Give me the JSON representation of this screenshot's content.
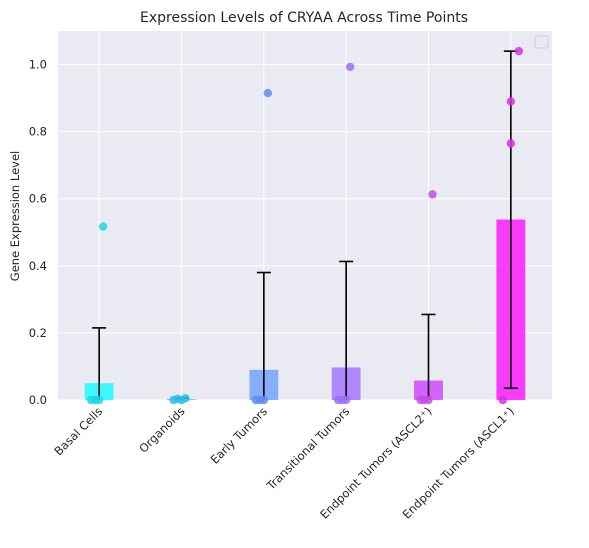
{
  "chart_data": {
    "type": "bar",
    "title": "Expression Levels of CRYAA Across Time Points",
    "xlabel": "",
    "ylabel": "Gene Expression Level",
    "ylim": [
      0,
      1.1
    ],
    "yticks": [
      "0.0",
      "0.2",
      "0.4",
      "0.6",
      "0.8",
      "1.0"
    ],
    "grid": true,
    "legend": "top-right (empty)",
    "categories": [
      "Basal Cells",
      "Organoids",
      "Early Tumors",
      "Transitional Tumors",
      "Endpoint Tumors (ASCL2⁺)",
      "Endpoint Tumors (ASCL1⁺)"
    ],
    "values": [
      0.05,
      0.003,
      0.09,
      0.097,
      0.058,
      0.538
    ],
    "error_bars": [
      [
        0.0,
        0.215
      ],
      [
        0.0,
        0.006
      ],
      [
        0.0,
        0.38
      ],
      [
        0.0,
        0.413
      ],
      [
        0.0,
        0.255
      ],
      [
        0.035,
        1.04
      ]
    ],
    "points": [
      [
        0.0,
        0.0,
        0.0,
        0.517
      ],
      [
        0.0,
        0.003,
        0.0,
        0.005
      ],
      [
        0.0,
        0.0,
        0.0,
        0.915
      ],
      [
        0.0,
        0.0,
        0.0,
        0.993
      ],
      [
        0.0,
        0.0,
        0.0,
        0.613
      ],
      [
        0.0,
        1.04,
        0.89,
        0.765
      ]
    ],
    "colors": [
      "#00ffff",
      "#33ccff",
      "#6699ff",
      "#9966ff",
      "#cc33ff",
      "#ff00ff"
    ],
    "point_colors": [
      "#1ad6e6",
      "#2bbde8",
      "#5c8cf0",
      "#9b6ef0",
      "#c44be8",
      "#de2ee8"
    ],
    "background": "#eaeaf2",
    "grid_color": "#ffffff"
  }
}
